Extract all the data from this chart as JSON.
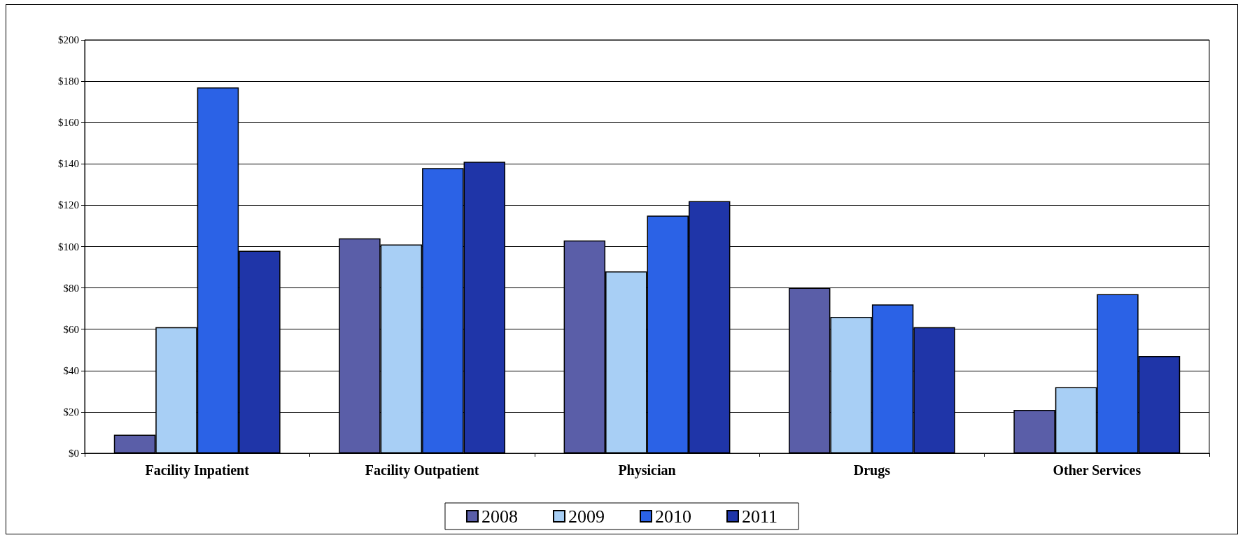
{
  "chart_data": {
    "type": "bar",
    "categories": [
      "Facility Inpatient",
      "Facility Outpatient",
      "Physician",
      "Drugs",
      "Other Services"
    ],
    "series": [
      {
        "name": "2008",
        "color": "#5a5ea8",
        "values": [
          9,
          104,
          103,
          80,
          21
        ]
      },
      {
        "name": "2009",
        "color": "#a8cff5",
        "values": [
          61,
          101,
          88,
          66,
          32
        ]
      },
      {
        "name": "2010",
        "color": "#2b62e6",
        "values": [
          177,
          138,
          115,
          72,
          77
        ]
      },
      {
        "name": "2011",
        "color": "#1f35a8",
        "values": [
          98,
          141,
          122,
          61,
          47
        ]
      }
    ],
    "ylim": [
      0,
      200
    ],
    "yticks": [
      {
        "value": 0,
        "label": "$0"
      },
      {
        "value": 20,
        "label": "$20"
      },
      {
        "value": 40,
        "label": "$40"
      },
      {
        "value": 60,
        "label": "$60"
      },
      {
        "value": 80,
        "label": "$80"
      },
      {
        "value": 100,
        "label": "$100"
      },
      {
        "value": 120,
        "label": "$120"
      },
      {
        "value": 140,
        "label": "$140"
      },
      {
        "value": 160,
        "label": "$160"
      },
      {
        "value": 180,
        "label": "$180"
      },
      {
        "value": 200,
        "label": "$200"
      }
    ],
    "grid": "y",
    "legend": "bottom"
  }
}
